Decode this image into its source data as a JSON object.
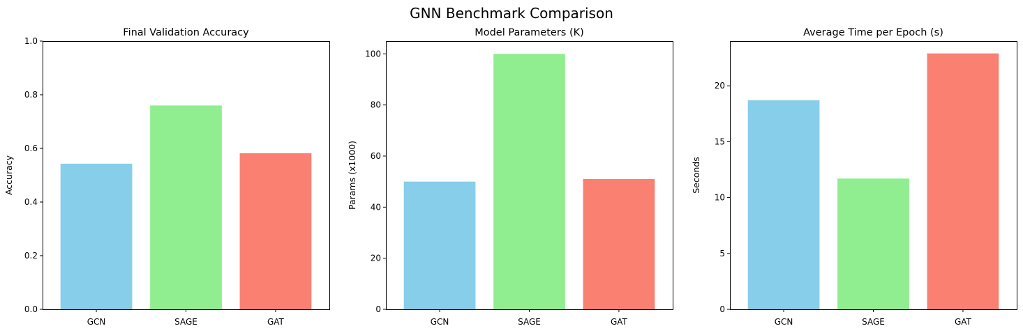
{
  "figure": {
    "title": "GNN Benchmark Comparison"
  },
  "chart_data": [
    {
      "type": "bar",
      "title": "Final Validation Accuracy",
      "xlabel": "",
      "ylabel": "Accuracy",
      "categories": [
        "GCN",
        "SAGE",
        "GAT"
      ],
      "values": [
        0.543,
        0.76,
        0.582
      ],
      "colors": [
        "#87ceeb",
        "#90ee90",
        "#fa8072"
      ],
      "ylim": [
        0,
        1.0
      ],
      "yticks": [
        0.0,
        0.2,
        0.4,
        0.6,
        0.8,
        1.0
      ],
      "ytick_labels": [
        "0.0",
        "0.2",
        "0.4",
        "0.6",
        "0.8",
        "1.0"
      ]
    },
    {
      "type": "bar",
      "title": "Model Parameters (K)",
      "xlabel": "",
      "ylabel": "Params (x1000)",
      "categories": [
        "GCN",
        "SAGE",
        "GAT"
      ],
      "values": [
        50,
        100,
        51
      ],
      "colors": [
        "#87ceeb",
        "#90ee90",
        "#fa8072"
      ],
      "ylim": [
        0,
        105
      ],
      "yticks": [
        0,
        20,
        40,
        60,
        80,
        100
      ],
      "ytick_labels": [
        "0",
        "20",
        "40",
        "60",
        "80",
        "100"
      ]
    },
    {
      "type": "bar",
      "title": "Average Time per Epoch (s)",
      "xlabel": "",
      "ylabel": "Seconds",
      "categories": [
        "GCN",
        "SAGE",
        "GAT"
      ],
      "values": [
        18.7,
        11.7,
        22.9
      ],
      "colors": [
        "#87ceeb",
        "#90ee90",
        "#fa8072"
      ],
      "ylim": [
        0,
        24.0
      ],
      "yticks": [
        0,
        5,
        10,
        15,
        20
      ],
      "ytick_labels": [
        "0",
        "5",
        "10",
        "15",
        "20"
      ]
    }
  ]
}
